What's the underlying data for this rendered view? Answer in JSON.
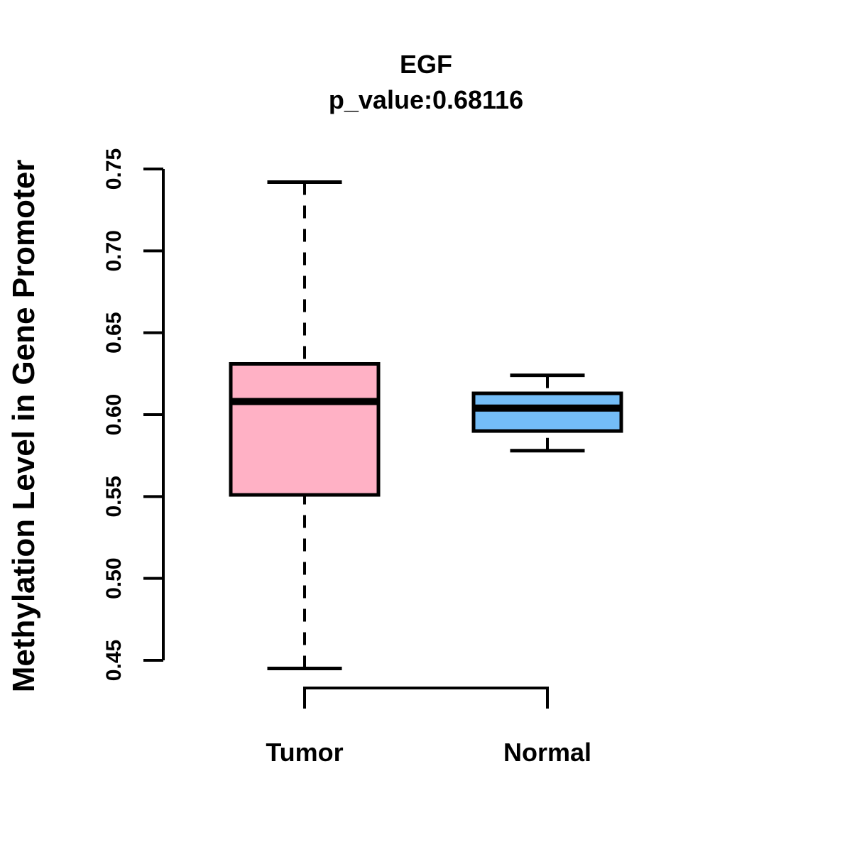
{
  "figure": {
    "title": "EGF",
    "subtitle": "p_value:0.68116",
    "y_axis_label": "Methylation Level in Gene Promoter"
  },
  "chart_data": {
    "type": "boxplot",
    "title": "EGF",
    "subtitle": "p_value:0.68116",
    "xlabel": "",
    "ylabel": "Methylation Level in Gene Promoter",
    "categories": [
      "Tumor",
      "Normal"
    ],
    "ylim": [
      0.45,
      0.75
    ],
    "yticks": [
      0.45,
      0.5,
      0.55,
      0.6,
      0.65,
      0.7,
      0.75
    ],
    "ytick_labels": [
      "0.45",
      "0.50",
      "0.55",
      "0.60",
      "0.65",
      "0.70",
      "0.75"
    ],
    "grid": false,
    "legend_position": "none",
    "series": [
      {
        "name": "Tumor",
        "min": 0.445,
        "q1": 0.551,
        "median": 0.608,
        "q3": 0.631,
        "max": 0.742,
        "fill": "#FFB1C5"
      },
      {
        "name": "Normal",
        "min": 0.578,
        "q1": 0.59,
        "median": 0.604,
        "q3": 0.613,
        "max": 0.624,
        "fill": "#74BDF7"
      }
    ],
    "colors": {
      "stroke": "#000000",
      "background": "#FFFFFF",
      "tumor_fill": "#FFB1C5",
      "normal_fill": "#74BDF7"
    }
  }
}
